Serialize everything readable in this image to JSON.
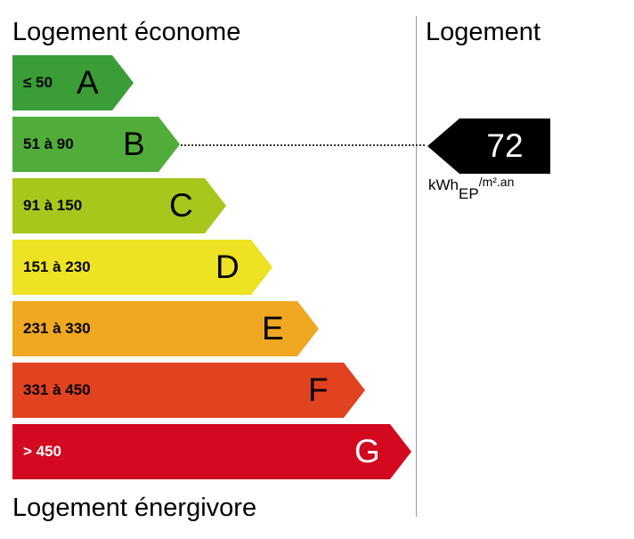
{
  "labels": {
    "top": "Logement économe",
    "bottom": "Logement énergivore",
    "right": "Logement"
  },
  "bands": [
    {
      "letter": "A",
      "range": "≤ 50",
      "color": "#3a9d35",
      "text_color": "#000000"
    },
    {
      "letter": "B",
      "range": "51 à 90",
      "color": "#51ad3a",
      "text_color": "#000000"
    },
    {
      "letter": "C",
      "range": "91 à 150",
      "color": "#a7c71c",
      "text_color": "#000000"
    },
    {
      "letter": "D",
      "range": "151 à 230",
      "color": "#ede223",
      "text_color": "#000000"
    },
    {
      "letter": "E",
      "range": "231 à 330",
      "color": "#f0a722",
      "text_color": "#000000"
    },
    {
      "letter": "F",
      "range": "331 à 450",
      "color": "#e1421f",
      "text_color": "#000000"
    },
    {
      "letter": "G",
      "range": "> 450",
      "color": "#d2091f",
      "text_color": "#ffffff"
    }
  ],
  "indicator": {
    "value": "72",
    "current_class": "B",
    "unit_main": "kWh",
    "unit_sub": "EP",
    "unit_rest": "/m².an"
  }
}
